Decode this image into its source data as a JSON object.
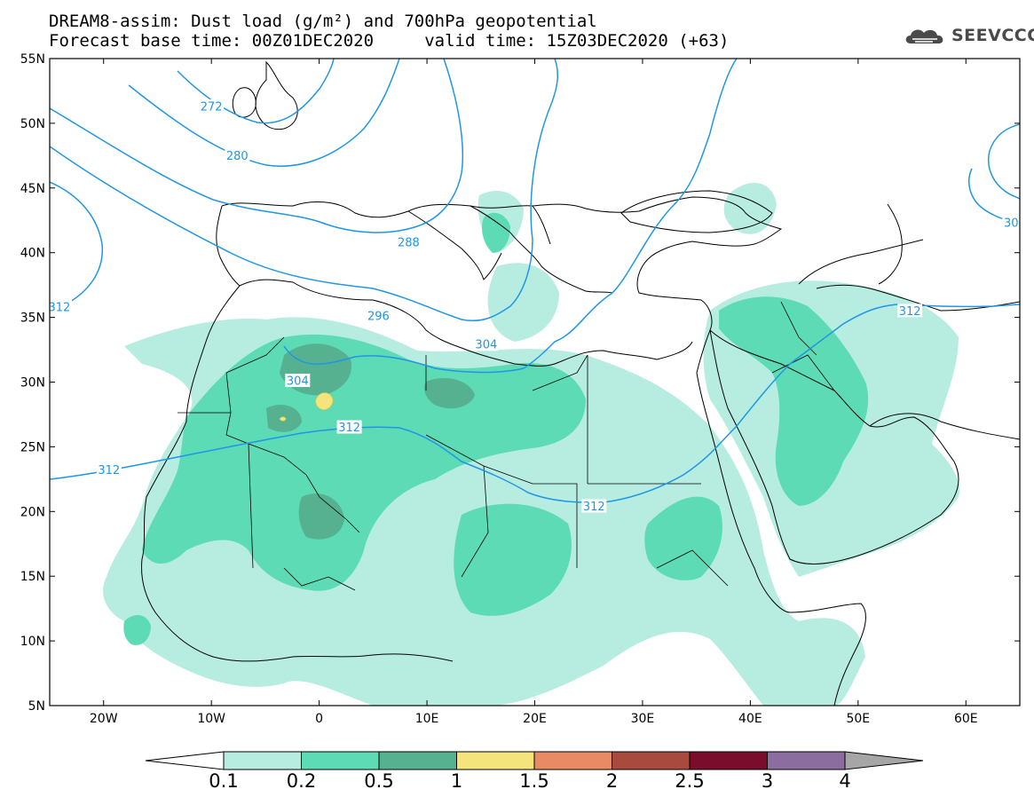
{
  "header": {
    "title_line1": "DREAM8-assim: Dust load (g/m²) and 700hPa geopotential",
    "title_line2": "Forecast base time: 00Z01DEC2020     valid time: 15Z03DEC2020 (+63)"
  },
  "logo": {
    "text": "SEEVCCC",
    "icon": "cloud-logo-icon"
  },
  "map": {
    "lon_range": [
      -25,
      65
    ],
    "lat_range": [
      5,
      55
    ],
    "lat_ticks": [
      {
        "value": 55,
        "label": "55N"
      },
      {
        "value": 50,
        "label": "50N"
      },
      {
        "value": 45,
        "label": "45N"
      },
      {
        "value": 40,
        "label": "40N"
      },
      {
        "value": 35,
        "label": "35N"
      },
      {
        "value": 30,
        "label": "30N"
      },
      {
        "value": 25,
        "label": "25N"
      },
      {
        "value": 20,
        "label": "20N"
      },
      {
        "value": 15,
        "label": "15N"
      },
      {
        "value": 10,
        "label": "10N"
      },
      {
        "value": 5,
        "label": "5N"
      }
    ],
    "lon_ticks": [
      {
        "value": -20,
        "label": "20W"
      },
      {
        "value": -10,
        "label": "10W"
      },
      {
        "value": 0,
        "label": "0"
      },
      {
        "value": 10,
        "label": "10E"
      },
      {
        "value": 20,
        "label": "20E"
      },
      {
        "value": 30,
        "label": "30E"
      },
      {
        "value": 40,
        "label": "40E"
      },
      {
        "value": 50,
        "label": "50E"
      },
      {
        "value": 60,
        "label": "60E"
      }
    ],
    "contour_labels": [
      {
        "text": "272",
        "lon": -10.0,
        "lat": 51.3
      },
      {
        "text": "280",
        "lon": -7.6,
        "lat": 47.5
      },
      {
        "text": "288",
        "lon": 8.3,
        "lat": 40.8
      },
      {
        "text": "296",
        "lon": 5.5,
        "lat": 35.1
      },
      {
        "text": "304",
        "lon": -2.0,
        "lat": 30.1
      },
      {
        "text": "304",
        "lon": 15.5,
        "lat": 32.9
      },
      {
        "text": "312",
        "lon": -19.5,
        "lat": 23.2
      },
      {
        "text": "312",
        "lon": 2.8,
        "lat": 26.5
      },
      {
        "text": "312",
        "lon": 25.5,
        "lat": 20.4
      },
      {
        "text": "312",
        "lon": 54.8,
        "lat": 35.5
      },
      {
        "text": "312",
        "lon": -24.1,
        "lat": 35.8
      },
      {
        "text": "30",
        "lon": 64.2,
        "lat": 42.3
      }
    ],
    "colors": {
      "contour": "#1f96e6",
      "coast": "#000000"
    }
  },
  "colorbar": {
    "levels": [
      "0.1",
      "0.2",
      "0.5",
      "1",
      "1.5",
      "2",
      "2.5",
      "3",
      "4"
    ],
    "colors": [
      "#ffffff",
      "#b7ede1",
      "#5cdbb5",
      "#56b190",
      "#f3e57c",
      "#e88a63",
      "#a84a3e",
      "#7a0d2c",
      "#8b6d9f",
      "#a6a6a6"
    ]
  }
}
